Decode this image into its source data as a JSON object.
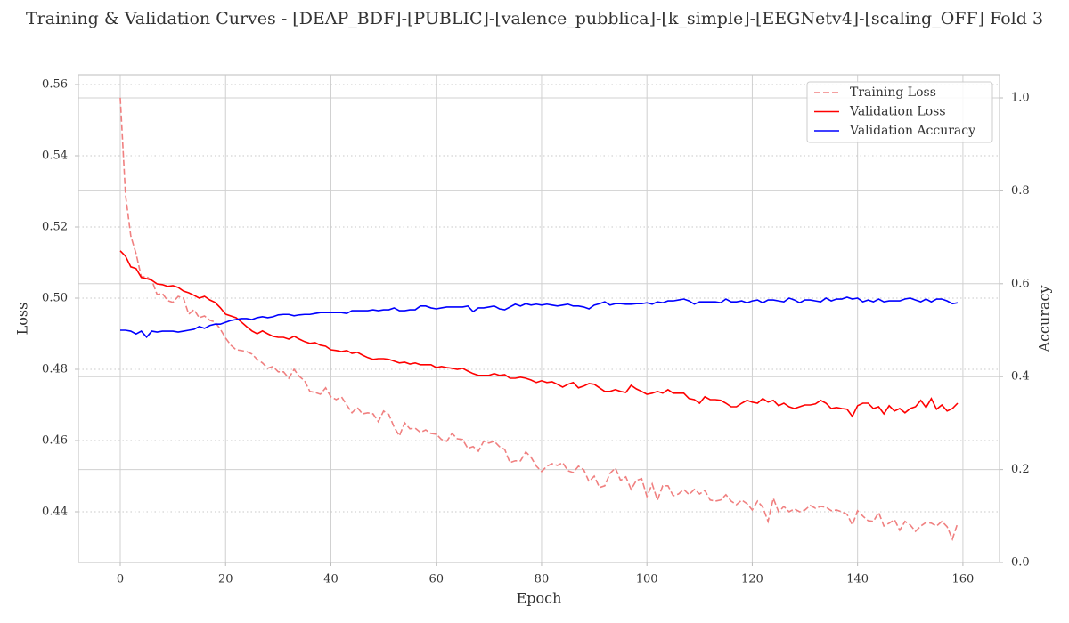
{
  "chart_data": {
    "type": "line",
    "title": "Training & Validation Curves - [DEAP_BDF]-[PUBLIC]-[valence_pubblica]-[k_simple]-[EEGNetv4]-[scaling_OFF] Fold 3",
    "xlabel": "Epoch",
    "ylabel": "Loss",
    "y2label": "Accuracy",
    "x": [
      0,
      1,
      2,
      3,
      4,
      5,
      6,
      7,
      8,
      9,
      10,
      11,
      12,
      13,
      14,
      15,
      16,
      17,
      18,
      19,
      20,
      21,
      22,
      23,
      24,
      25,
      26,
      27,
      28,
      29,
      30,
      31,
      32,
      33,
      34,
      35,
      36,
      37,
      38,
      39,
      40,
      41,
      42,
      43,
      44,
      45,
      46,
      47,
      48,
      49,
      50,
      51,
      52,
      53,
      54,
      55,
      56,
      57,
      58,
      59,
      60,
      61,
      62,
      63,
      64,
      65,
      66,
      67,
      68,
      69,
      70,
      71,
      72,
      73,
      74,
      75,
      76,
      77,
      78,
      79,
      80,
      81,
      82,
      83,
      84,
      85,
      86,
      87,
      88,
      89,
      90,
      91,
      92,
      93,
      94,
      95,
      96,
      97,
      98,
      99,
      100,
      101,
      102,
      103,
      104,
      105,
      106,
      107,
      108,
      109,
      110,
      111,
      112,
      113,
      114,
      115,
      116,
      117,
      118,
      119,
      120,
      121,
      122,
      123,
      124,
      125,
      126,
      127,
      128,
      129,
      130,
      131,
      132,
      133,
      134,
      135,
      136,
      137,
      138,
      139,
      140,
      141,
      142,
      143,
      144,
      145,
      146,
      147,
      148,
      149,
      150,
      151,
      152,
      153,
      154,
      155,
      156,
      157,
      158,
      159
    ],
    "series": [
      {
        "name": "Training Loss",
        "color": "#f08080",
        "linestyle": "dashed",
        "axis": "y",
        "values": [
          0.5563,
          0.529,
          0.5175,
          0.5125,
          0.506,
          0.506,
          0.505,
          0.501,
          0.5013,
          0.4993,
          0.4988,
          0.5005,
          0.5,
          0.4955,
          0.4968,
          0.4945,
          0.495,
          0.4938,
          0.4933,
          0.4913,
          0.4888,
          0.4868,
          0.4855,
          0.4853,
          0.485,
          0.4843,
          0.4828,
          0.4818,
          0.4803,
          0.4808,
          0.4793,
          0.4793,
          0.4775,
          0.48,
          0.478,
          0.4768,
          0.4738,
          0.4735,
          0.473,
          0.4748,
          0.4723,
          0.4715,
          0.4723,
          0.47,
          0.4678,
          0.4693,
          0.4675,
          0.4678,
          0.4675,
          0.4653,
          0.4683,
          0.4673,
          0.4638,
          0.4613,
          0.465,
          0.4633,
          0.4635,
          0.4623,
          0.463,
          0.462,
          0.4618,
          0.4603,
          0.4598,
          0.462,
          0.4605,
          0.4603,
          0.4578,
          0.4583,
          0.457,
          0.4598,
          0.4593,
          0.4598,
          0.4583,
          0.4575,
          0.4538,
          0.4543,
          0.4543,
          0.4568,
          0.4553,
          0.4528,
          0.4513,
          0.4528,
          0.4535,
          0.453,
          0.4538,
          0.4515,
          0.451,
          0.4528,
          0.4518,
          0.4485,
          0.45,
          0.4468,
          0.4473,
          0.4508,
          0.4523,
          0.4488,
          0.4498,
          0.4463,
          0.4488,
          0.4493,
          0.4443,
          0.4478,
          0.4433,
          0.4473,
          0.4473,
          0.4445,
          0.445,
          0.4463,
          0.4448,
          0.4463,
          0.445,
          0.446,
          0.4433,
          0.443,
          0.4433,
          0.4448,
          0.443,
          0.442,
          0.4433,
          0.4423,
          0.4405,
          0.443,
          0.4413,
          0.4373,
          0.4438,
          0.44,
          0.4415,
          0.44,
          0.4408,
          0.44,
          0.4405,
          0.4418,
          0.441,
          0.4415,
          0.4413,
          0.4403,
          0.4405,
          0.44,
          0.4393,
          0.4363,
          0.4403,
          0.4388,
          0.4375,
          0.4373,
          0.4398,
          0.436,
          0.4368,
          0.4378,
          0.4348,
          0.4373,
          0.4363,
          0.4345,
          0.436,
          0.437,
          0.4368,
          0.436,
          0.4373,
          0.4358,
          0.4323,
          0.4368
        ]
      },
      {
        "name": "Validation Loss",
        "color": "#ff0000",
        "linestyle": "solid",
        "axis": "y",
        "values": [
          0.5133,
          0.5118,
          0.5088,
          0.5083,
          0.5058,
          0.5055,
          0.505,
          0.504,
          0.5038,
          0.5033,
          0.5035,
          0.503,
          0.502,
          0.5015,
          0.5008,
          0.5,
          0.5005,
          0.4995,
          0.4988,
          0.4973,
          0.4955,
          0.495,
          0.4945,
          0.4933,
          0.492,
          0.4908,
          0.49,
          0.4908,
          0.49,
          0.4893,
          0.489,
          0.489,
          0.4885,
          0.4893,
          0.4885,
          0.4878,
          0.4873,
          0.4875,
          0.4868,
          0.4865,
          0.4855,
          0.4853,
          0.485,
          0.4853,
          0.4845,
          0.4848,
          0.484,
          0.4833,
          0.4828,
          0.483,
          0.483,
          0.4828,
          0.4823,
          0.4818,
          0.482,
          0.4815,
          0.4818,
          0.4813,
          0.4813,
          0.4813,
          0.4805,
          0.4808,
          0.4805,
          0.4803,
          0.48,
          0.4803,
          0.4795,
          0.4788,
          0.4783,
          0.4783,
          0.4783,
          0.4788,
          0.4783,
          0.4785,
          0.4775,
          0.4775,
          0.4778,
          0.4775,
          0.477,
          0.4763,
          0.4768,
          0.4763,
          0.4765,
          0.4758,
          0.475,
          0.4758,
          0.4763,
          0.4748,
          0.4753,
          0.476,
          0.4758,
          0.4748,
          0.4738,
          0.4738,
          0.4743,
          0.4738,
          0.4735,
          0.4755,
          0.4745,
          0.4738,
          0.473,
          0.4733,
          0.4738,
          0.4733,
          0.4743,
          0.4733,
          0.4733,
          0.4733,
          0.4718,
          0.4715,
          0.4705,
          0.4723,
          0.4715,
          0.4715,
          0.4713,
          0.4705,
          0.4695,
          0.4695,
          0.4705,
          0.4713,
          0.4708,
          0.4705,
          0.4718,
          0.4708,
          0.4713,
          0.4698,
          0.4705,
          0.4695,
          0.469,
          0.4695,
          0.47,
          0.47,
          0.4703,
          0.4713,
          0.4705,
          0.469,
          0.4693,
          0.469,
          0.4688,
          0.4668,
          0.4698,
          0.4705,
          0.4705,
          0.469,
          0.4695,
          0.4675,
          0.4698,
          0.4683,
          0.469,
          0.4678,
          0.469,
          0.4695,
          0.4713,
          0.4693,
          0.4718,
          0.4688,
          0.47,
          0.4683,
          0.469,
          0.4705
        ]
      },
      {
        "name": "Validation Accuracy",
        "color": "#0000ff",
        "linestyle": "solid",
        "axis": "y2",
        "values": [
          0.5,
          0.5,
          0.498,
          0.492,
          0.498,
          0.485,
          0.498,
          0.496,
          0.498,
          0.498,
          0.498,
          0.496,
          0.498,
          0.5,
          0.502,
          0.508,
          0.504,
          0.51,
          0.513,
          0.513,
          0.517,
          0.521,
          0.523,
          0.525,
          0.525,
          0.523,
          0.527,
          0.529,
          0.527,
          0.529,
          0.533,
          0.534,
          0.534,
          0.531,
          0.533,
          0.534,
          0.534,
          0.536,
          0.538,
          0.538,
          0.538,
          0.538,
          0.538,
          0.536,
          0.542,
          0.542,
          0.542,
          0.542,
          0.544,
          0.542,
          0.544,
          0.544,
          0.548,
          0.542,
          0.542,
          0.544,
          0.544,
          0.552,
          0.552,
          0.548,
          0.546,
          0.548,
          0.55,
          0.55,
          0.55,
          0.55,
          0.552,
          0.54,
          0.548,
          0.548,
          0.55,
          0.552,
          0.546,
          0.544,
          0.55,
          0.556,
          0.552,
          0.557,
          0.554,
          0.556,
          0.554,
          0.556,
          0.554,
          0.552,
          0.554,
          0.556,
          0.552,
          0.552,
          0.55,
          0.546,
          0.554,
          0.557,
          0.561,
          0.554,
          0.557,
          0.557,
          0.556,
          0.556,
          0.557,
          0.557,
          0.559,
          0.556,
          0.561,
          0.559,
          0.563,
          0.563,
          0.565,
          0.567,
          0.563,
          0.556,
          0.561,
          0.561,
          0.561,
          0.561,
          0.559,
          0.567,
          0.561,
          0.561,
          0.563,
          0.559,
          0.563,
          0.565,
          0.559,
          0.565,
          0.565,
          0.563,
          0.561,
          0.569,
          0.565,
          0.559,
          0.565,
          0.565,
          0.563,
          0.561,
          0.569,
          0.563,
          0.567,
          0.567,
          0.571,
          0.567,
          0.569,
          0.561,
          0.565,
          0.561,
          0.567,
          0.561,
          0.563,
          0.563,
          0.563,
          0.567,
          0.569,
          0.565,
          0.561,
          0.567,
          0.561,
          0.567,
          0.567,
          0.563,
          0.557,
          0.559
        ]
      }
    ],
    "xlim": [
      -7.95,
      166.95
    ],
    "xticks": [
      0,
      20,
      40,
      60,
      80,
      100,
      120,
      140,
      160
    ],
    "ylim": [
      0.42575,
      0.56275
    ],
    "yticks": [
      0.44,
      0.46,
      0.48,
      {
        "value": 0.5,
        "label": "0.50"
      },
      0.52,
      0.54,
      0.56
    ],
    "y2lim": [
      0,
      1.0498
    ],
    "y2ticks": [
      {
        "value": 0,
        "label": "0.0"
      },
      0.2,
      0.4,
      0.6,
      0.8,
      {
        "value": 1,
        "label": "1.0"
      }
    ],
    "ycolor": "#c0392b",
    "y2color": "#1f77b4",
    "grid": true,
    "legend": "upper right"
  }
}
